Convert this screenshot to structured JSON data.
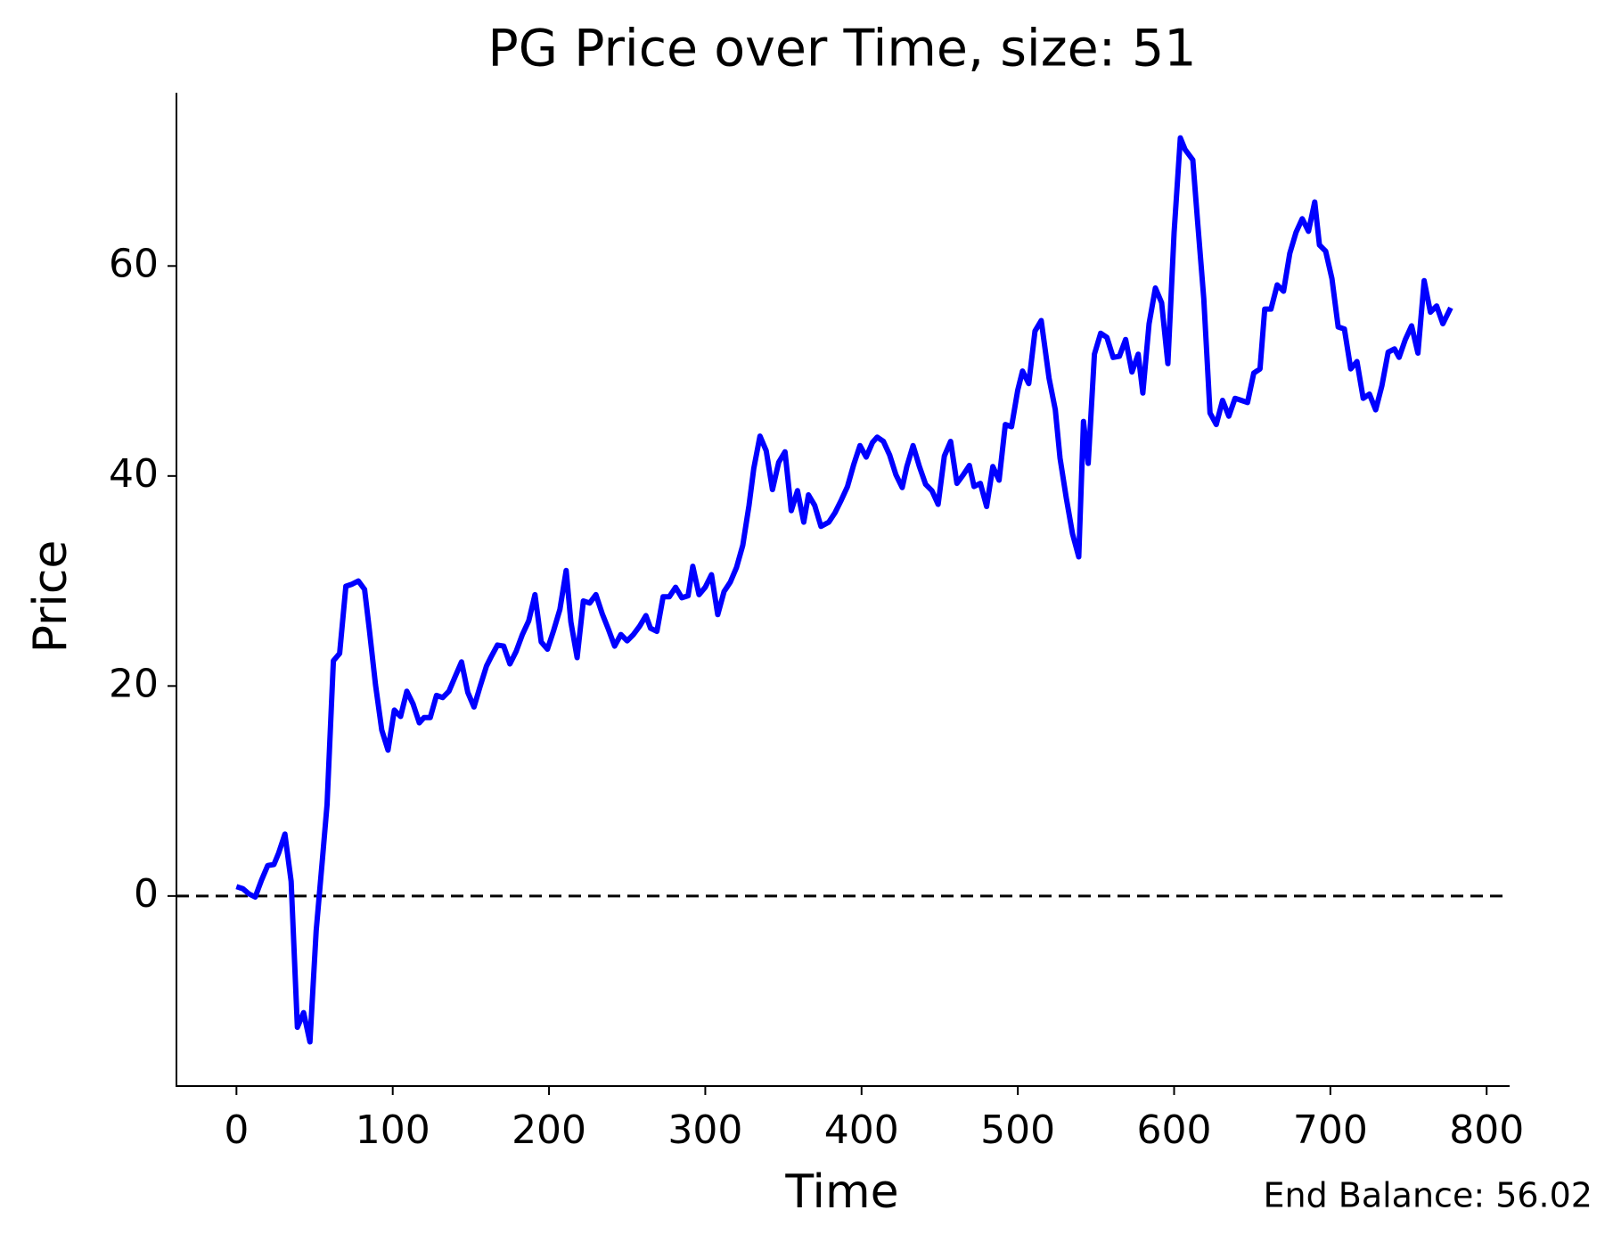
{
  "chart_data": {
    "type": "line",
    "title": "PG Price over Time, size: 51",
    "xlabel": "Time",
    "ylabel": "Price",
    "annotation": "End Balance: 56.02",
    "xlim": [
      -38.4,
      814.7
    ],
    "ylim": [
      -18.1,
      76.5
    ],
    "xticks": [
      0,
      100,
      200,
      300,
      400,
      500,
      600,
      700,
      800
    ],
    "yticks": [
      0,
      20,
      40,
      60
    ],
    "hline": 0,
    "hline_color": "#000000",
    "series": [
      {
        "name": "Price",
        "color": "#0000ff",
        "x": [
          0,
          4,
          8,
          12,
          16,
          20,
          24,
          27,
          31,
          35,
          39,
          43,
          47,
          51,
          55,
          58,
          62,
          66,
          70,
          74,
          78,
          82,
          85,
          89,
          93,
          97,
          101,
          105,
          109,
          113,
          117,
          120,
          124,
          128,
          132,
          136,
          140,
          144,
          148,
          152,
          156,
          160,
          163,
          167,
          171,
          175,
          179,
          183,
          187,
          191,
          195,
          199,
          203,
          207,
          211,
          214,
          218,
          222,
          226,
          230,
          234,
          238,
          242,
          246,
          250,
          254,
          258,
          262,
          265,
          269,
          273,
          277,
          281,
          285,
          289,
          292,
          296,
          300,
          304,
          308,
          312,
          316,
          320,
          324,
          328,
          331,
          335,
          339,
          343,
          347,
          351,
          355,
          359,
          363,
          366,
          370,
          374,
          379,
          383,
          387,
          391,
          395,
          399,
          403,
          407,
          410,
          414,
          418,
          422,
          426,
          429,
          433,
          437,
          441,
          445,
          449,
          453,
          457,
          461,
          465,
          469,
          472,
          476,
          480,
          484,
          488,
          492,
          496,
          500,
          503,
          507,
          511,
          515,
          520,
          524,
          527,
          531,
          535,
          539,
          542,
          545,
          549,
          553,
          557,
          561,
          565,
          569,
          573,
          577,
          580,
          584,
          588,
          592,
          596,
          600,
          604,
          607,
          612,
          615,
          619,
          623,
          627,
          631,
          635,
          639,
          643,
          647,
          651,
          655,
          658,
          662,
          666,
          670,
          674,
          678,
          682,
          686,
          690,
          693,
          697,
          701,
          705,
          709,
          713,
          717,
          721,
          725,
          729,
          733,
          737,
          741,
          744,
          748,
          752,
          756,
          760,
          764,
          768,
          772,
          777
        ],
        "values": [
          0.9,
          0.7,
          0.2,
          -0.1,
          1.5,
          2.9,
          3.0,
          4.1,
          5.9,
          1.4,
          -12.5,
          -11.1,
          -13.9,
          -3.3,
          3.5,
          8.7,
          22.4,
          23.1,
          29.5,
          29.7,
          30.0,
          29.2,
          25.4,
          20.1,
          15.8,
          13.9,
          17.7,
          17.1,
          19.5,
          18.3,
          16.5,
          17.0,
          17.0,
          19.1,
          18.9,
          19.5,
          20.9,
          22.3,
          19.4,
          18.0,
          20.0,
          21.9,
          22.8,
          23.9,
          23.8,
          22.1,
          23.3,
          24.9,
          26.2,
          28.7,
          24.2,
          23.5,
          25.3,
          27.3,
          31.0,
          26.1,
          22.7,
          28.1,
          27.9,
          28.7,
          26.9,
          25.4,
          23.8,
          24.9,
          24.3,
          24.9,
          25.7,
          26.7,
          25.5,
          25.2,
          28.5,
          28.5,
          29.4,
          28.4,
          28.6,
          31.4,
          28.7,
          29.4,
          30.6,
          26.8,
          29.0,
          29.9,
          31.3,
          33.4,
          37.2,
          40.7,
          43.8,
          42.4,
          38.7,
          41.3,
          42.3,
          36.7,
          38.6,
          35.6,
          38.2,
          37.2,
          35.2,
          35.6,
          36.5,
          37.7,
          39.0,
          41.1,
          42.9,
          41.8,
          43.2,
          43.7,
          43.3,
          42.0,
          40.1,
          38.9,
          40.9,
          42.9,
          40.9,
          39.2,
          38.6,
          37.3,
          41.9,
          43.3,
          39.3,
          40.1,
          41.0,
          39.0,
          39.3,
          37.1,
          40.9,
          39.6,
          44.9,
          44.7,
          48.2,
          50.0,
          48.8,
          53.8,
          54.8,
          49.3,
          46.3,
          41.7,
          37.9,
          34.5,
          32.3,
          45.2,
          41.2,
          51.6,
          53.6,
          53.2,
          51.3,
          51.4,
          53.0,
          49.9,
          51.6,
          47.9,
          54.5,
          57.9,
          56.5,
          50.7,
          63.2,
          72.2,
          71.1,
          70.1,
          64.3,
          56.9,
          46.0,
          44.9,
          47.2,
          45.7,
          47.4,
          47.2,
          47.0,
          49.8,
          50.2,
          55.9,
          55.9,
          58.2,
          57.6,
          61.2,
          63.2,
          64.5,
          63.3,
          66.1,
          62.0,
          61.4,
          58.8,
          54.2,
          54.0,
          50.2,
          50.9,
          47.4,
          47.8,
          46.3,
          48.6,
          51.8,
          52.1,
          51.3,
          53.0,
          54.3,
          51.7,
          58.6,
          55.6,
          56.2,
          54.5,
          56.02
        ]
      }
    ]
  }
}
